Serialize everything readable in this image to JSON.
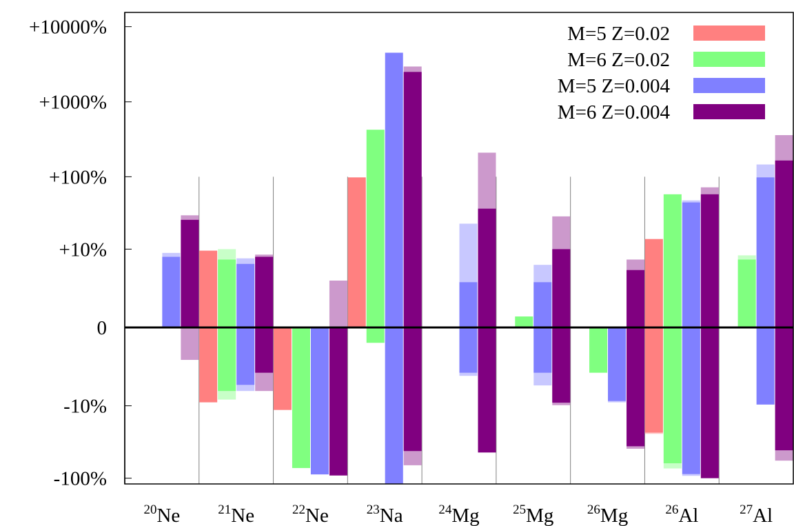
{
  "chart_data": {
    "type": "bar",
    "scale": "symmetric-log",
    "categories": [
      {
        "mass": "20",
        "element": "Ne"
      },
      {
        "mass": "21",
        "element": "Ne"
      },
      {
        "mass": "22",
        "element": "Ne"
      },
      {
        "mass": "23",
        "element": "Na"
      },
      {
        "mass": "24",
        "element": "Mg"
      },
      {
        "mass": "25",
        "element": "Mg"
      },
      {
        "mass": "26",
        "element": "Mg"
      },
      {
        "mass": "26",
        "element": "Al"
      },
      {
        "mass": "27",
        "element": "Al"
      }
    ],
    "y_ticks": [
      {
        "value": 10000,
        "label": "+10000%"
      },
      {
        "value": 1000,
        "label": "+1000%"
      },
      {
        "value": 100,
        "label": "+100%"
      },
      {
        "value": 10,
        "label": "+10%"
      },
      {
        "value": 0,
        "label": "0"
      },
      {
        "value": -10,
        "label": "-10%"
      },
      {
        "value": -100,
        "label": "-100%"
      }
    ],
    "ylim": [
      -100,
      10000
    ],
    "legend_position": "top-right",
    "series": [
      {
        "name": "M=5  Z=0.02",
        "color": "#ff8080",
        "light_color": "#ffc8c8",
        "bars": [
          null,
          {
            "pos": 9.5,
            "neg": -8.9,
            "pos_ext": null,
            "neg_ext": null
          },
          {
            "pos": null,
            "neg": -11.5,
            "pos_ext": null,
            "neg_ext": null
          },
          {
            "pos": 98,
            "neg": null,
            "pos_ext": null,
            "neg_ext": null
          },
          null,
          null,
          null,
          {
            "pos": 14,
            "neg": -24,
            "pos_ext": null,
            "neg_ext": -25
          },
          null
        ]
      },
      {
        "name": "M=6  Z=0.02",
        "color": "#80ff80",
        "light_color": "#c8ffc8",
        "bars": [
          null,
          {
            "pos": 7,
            "neg": -6,
            "pos_ext": 10,
            "neg_ext": -8.1
          },
          {
            "pos": null,
            "neg": -73,
            "pos_ext": null,
            "neg_ext": null
          },
          {
            "pos": 425,
            "neg": -0.6,
            "pos_ext": null,
            "neg_ext": null
          },
          null,
          {
            "pos": 0.4,
            "neg": null,
            "pos_ext": null,
            "neg_ext": null
          },
          {
            "pos": null,
            "neg": -3,
            "pos_ext": null,
            "neg_ext": null
          },
          {
            "pos": 58,
            "neg": -63,
            "pos_ext": null,
            "neg_ext": -74
          },
          {
            "pos": 7,
            "neg": null,
            "pos_ext": 8.1,
            "neg_ext": null
          }
        ]
      },
      {
        "name": "M=5  Z=0.004",
        "color": "#8080ff",
        "light_color": "#c8c8ff",
        "bars": [
          {
            "pos": 7.7,
            "neg": null,
            "pos_ext": 8.8,
            "neg_ext": null
          },
          {
            "pos": 6,
            "neg": -4.8,
            "pos_ext": 7.3,
            "neg_ext": -6
          },
          {
            "pos": null,
            "neg": -89,
            "pos_ext": null,
            "neg_ext": null
          },
          {
            "pos": 4500,
            "neg": -170,
            "pos_ext": null,
            "neg_ext": -280
          },
          {
            "pos": 3,
            "neg": -3,
            "pos_ext": 23,
            "neg_ext": -3.4
          },
          {
            "pos": 3,
            "neg": -3,
            "pos_ext": 5.8,
            "neg_ext": -4.9
          },
          {
            "pos": null,
            "neg": -8.5,
            "pos_ext": null,
            "neg_ext": -8.9
          },
          {
            "pos": 45,
            "neg": -88,
            "pos_ext": 48,
            "neg_ext": -93
          },
          {
            "pos": 98,
            "neg": -9.6,
            "pos_ext": 146,
            "neg_ext": null
          }
        ]
      },
      {
        "name": "M=6  Z=0.004",
        "color": "#800080",
        "light_color": "#cc99cc",
        "bars": [
          {
            "pos": 26,
            "neg": null,
            "pos_ext": 30,
            "neg_ext": -1.7
          },
          {
            "pos": 7.7,
            "neg": -3,
            "pos_ext": 8.3,
            "neg_ext": -6
          },
          {
            "pos": null,
            "neg": -92,
            "pos_ext": 3.2,
            "neg_ext": null
          },
          {
            "pos": 2500,
            "neg": -43,
            "pos_ext": 2950,
            "neg_ext": -67
          },
          {
            "pos": 37,
            "neg": -45,
            "pos_ext": 210,
            "neg_ext": null
          },
          {
            "pos": 10,
            "neg": -9,
            "pos_ext": 29,
            "neg_ext": -9.8
          },
          {
            "pos": 4.8,
            "neg": -37,
            "pos_ext": 7,
            "neg_ext": -40
          },
          {
            "pos": 58,
            "neg": -100,
            "pos_ext": 72,
            "neg_ext": null
          },
          {
            "pos": 165,
            "neg": -42,
            "pos_ext": 360,
            "neg_ext": -58
          }
        ]
      }
    ]
  }
}
